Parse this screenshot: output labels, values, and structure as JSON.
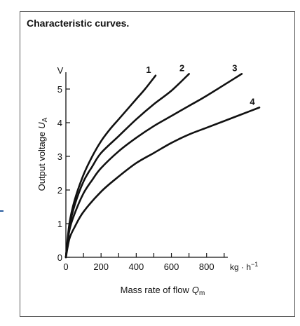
{
  "chart_data": {
    "type": "line",
    "title": "Characteristic curves.",
    "xlabel": "Mass rate of flow",
    "xlabel_symbol": "Q",
    "xlabel_subscript": "m",
    "ylabel": "Output voltage",
    "ylabel_symbol": "U",
    "ylabel_subscript": "A",
    "x_unit": "kg · h",
    "x_unit_exponent": "−1",
    "y_unit": "V",
    "xlim": [
      0,
      1100
    ],
    "ylim": [
      0,
      5.5
    ],
    "x_ticks": [
      0,
      200,
      400,
      600,
      800
    ],
    "x_tick_labels": [
      "0",
      "200",
      "400",
      "600",
      "800"
    ],
    "y_ticks": [
      0,
      1,
      2,
      3,
      4,
      5
    ],
    "y_tick_labels": [
      "0",
      "1",
      "2",
      "3",
      "4",
      "5"
    ],
    "grid": false,
    "legend": "none",
    "line_color": "#111111",
    "series": [
      {
        "name": "1",
        "x": [
          0,
          20,
          50,
          100,
          150,
          200,
          250,
          300,
          350,
          400,
          450,
          510
        ],
        "y": [
          0,
          1.0,
          1.7,
          2.45,
          3.0,
          3.45,
          3.8,
          4.1,
          4.4,
          4.7,
          5.0,
          5.4
        ]
      },
      {
        "name": "2",
        "x": [
          0,
          20,
          50,
          100,
          150,
          200,
          300,
          400,
          500,
          600,
          700
        ],
        "y": [
          0,
          0.9,
          1.55,
          2.25,
          2.7,
          3.1,
          3.6,
          4.1,
          4.55,
          4.95,
          5.45
        ]
      },
      {
        "name": "3",
        "x": [
          0,
          20,
          50,
          100,
          150,
          200,
          300,
          400,
          500,
          600,
          700,
          800,
          1000
        ],
        "y": [
          0,
          0.8,
          1.3,
          1.9,
          2.3,
          2.65,
          3.15,
          3.55,
          3.9,
          4.2,
          4.5,
          4.8,
          5.45
        ]
      },
      {
        "name": "4",
        "x": [
          0,
          20,
          50,
          100,
          200,
          300,
          400,
          500,
          600,
          700,
          800,
          900,
          1000,
          1100
        ],
        "y": [
          0,
          0.55,
          0.9,
          1.35,
          1.95,
          2.4,
          2.8,
          3.1,
          3.4,
          3.65,
          3.85,
          4.05,
          4.25,
          4.45
        ]
      }
    ]
  }
}
